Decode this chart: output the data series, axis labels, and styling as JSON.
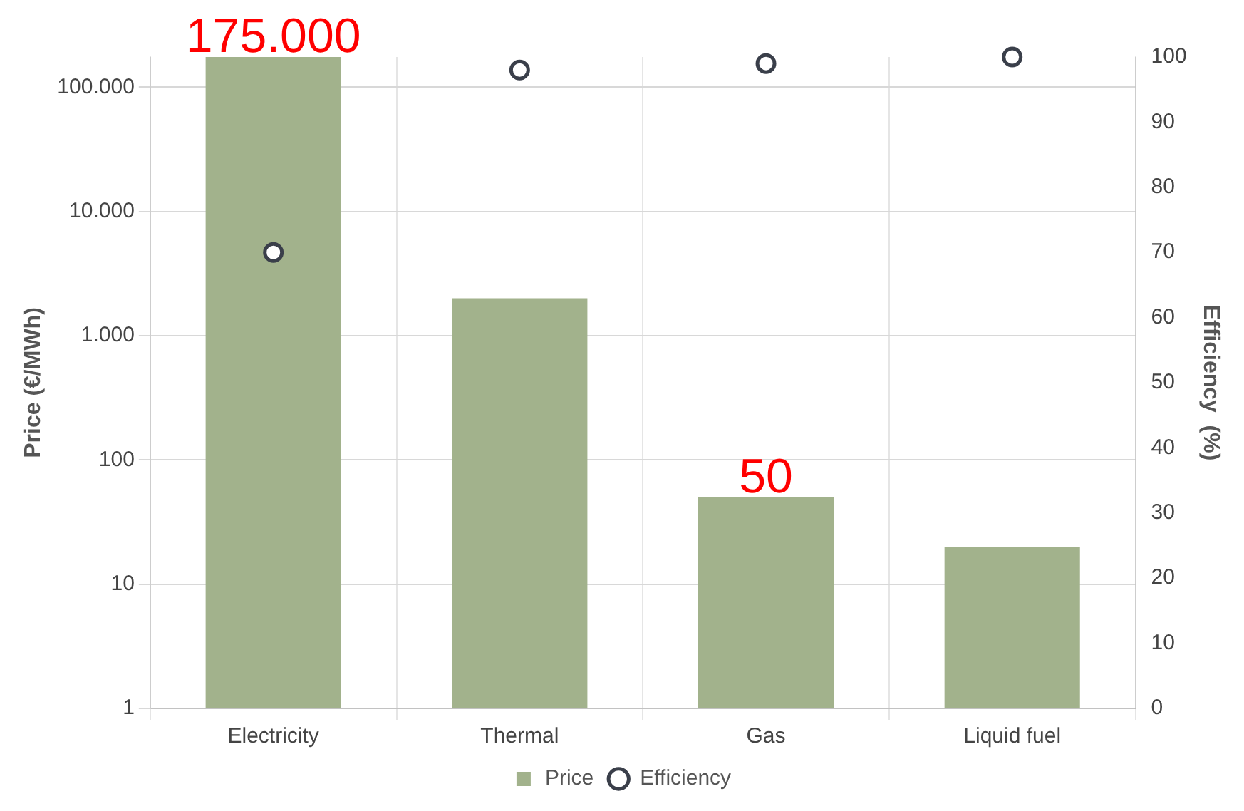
{
  "chart_data": {
    "type": "bar",
    "categories": [
      "Electricity",
      "Thermal",
      "Gas",
      "Liquid fuel"
    ],
    "ylabel": "Price (€/MWh)",
    "y2label": "Efficiency  (%)",
    "log": "y",
    "ylim": [
      1,
      175000
    ],
    "yticks": [
      1,
      10,
      100,
      {
        "value": 1000,
        "label": "1.000"
      },
      {
        "value": 10000,
        "label": "10.000"
      },
      {
        "value": 100000,
        "label": "100.000"
      }
    ],
    "y2lim": [
      0,
      100
    ],
    "y2ticks": [
      0,
      10,
      20,
      30,
      40,
      50,
      60,
      70,
      80,
      90,
      100
    ],
    "grid": true,
    "legend": "bottom",
    "series": [
      {
        "name": "Price",
        "color": "#a2b28c",
        "values": [
          175000,
          2000,
          50,
          20
        ],
        "value_labels": [
          "175.000",
          null,
          "50",
          null
        ]
      },
      {
        "name": "Efficiency",
        "type": "scatter",
        "axis": "y2",
        "color": "#3a3f4a",
        "marker": "circle",
        "values": [
          70,
          98,
          99,
          100
        ]
      }
    ]
  }
}
